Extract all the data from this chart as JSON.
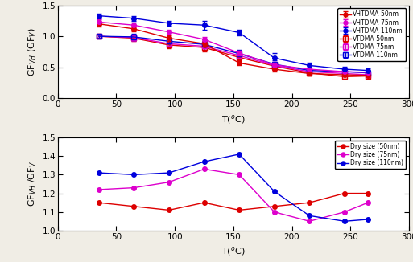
{
  "upper_x": [
    35,
    65,
    95,
    125,
    155,
    185,
    215,
    245,
    265
  ],
  "vhtdma_50nm": [
    1.2,
    1.12,
    0.97,
    0.88,
    0.57,
    0.47,
    0.4,
    0.38,
    0.37
  ],
  "vhtdma_75nm": [
    1.23,
    1.18,
    1.07,
    0.95,
    0.73,
    0.54,
    0.47,
    0.43,
    0.42
  ],
  "vhtdma_110nm": [
    1.33,
    1.29,
    1.21,
    1.18,
    1.06,
    0.65,
    0.53,
    0.47,
    0.45
  ],
  "vhtdma_50nm_err": [
    0.04,
    0.04,
    0.04,
    0.04,
    0.04,
    0.04,
    0.03,
    0.03,
    0.03
  ],
  "vhtdma_75nm_err": [
    0.04,
    0.04,
    0.04,
    0.04,
    0.04,
    0.04,
    0.03,
    0.03,
    0.03
  ],
  "vhtdma_110nm_err": [
    0.04,
    0.04,
    0.04,
    0.07,
    0.04,
    0.08,
    0.04,
    0.04,
    0.04
  ],
  "vtdma_50nm": [
    1.0,
    0.97,
    0.86,
    0.82,
    0.66,
    0.52,
    0.41,
    0.35,
    0.36
  ],
  "vtdma_75nm": [
    1.0,
    0.98,
    0.88,
    0.84,
    0.69,
    0.53,
    0.43,
    0.4,
    0.38
  ],
  "vtdma_110nm": [
    1.0,
    0.99,
    0.92,
    0.87,
    0.72,
    0.55,
    0.45,
    0.43,
    0.41
  ],
  "vtdma_50nm_err": [
    0.03,
    0.05,
    0.05,
    0.06,
    0.06,
    0.06,
    0.04,
    0.04,
    0.04
  ],
  "vtdma_75nm_err": [
    0.03,
    0.05,
    0.05,
    0.06,
    0.06,
    0.06,
    0.04,
    0.04,
    0.04
  ],
  "vtdma_110nm_err": [
    0.03,
    0.05,
    0.05,
    0.06,
    0.06,
    0.06,
    0.04,
    0.04,
    0.04
  ],
  "lower_x": [
    35,
    65,
    95,
    125,
    155,
    185,
    215,
    245,
    265
  ],
  "ratio_50nm": [
    1.15,
    1.13,
    1.11,
    1.15,
    1.11,
    1.13,
    1.15,
    1.2,
    1.2
  ],
  "ratio_75nm": [
    1.22,
    1.23,
    1.26,
    1.33,
    1.3,
    1.1,
    1.05,
    1.1,
    1.15
  ],
  "ratio_110nm": [
    1.31,
    1.3,
    1.31,
    1.37,
    1.41,
    1.21,
    1.08,
    1.05,
    1.06
  ],
  "color_50nm": "#dd0000",
  "color_75nm": "#dd00cc",
  "color_110nm": "#0000dd",
  "upper_ylabel": "GF$_{VH}$ (GF$_V$)",
  "lower_ylabel": "GF$_{VH}$ /GF$_V$",
  "xlabel": "T($^o$C)",
  "upper_ylim": [
    0,
    1.5
  ],
  "lower_ylim": [
    1.0,
    1.5
  ],
  "xlim": [
    0,
    300
  ],
  "upper_yticks": [
    0,
    0.5,
    1.0,
    1.5
  ],
  "lower_yticks": [
    1.0,
    1.1,
    1.2,
    1.3,
    1.4,
    1.5
  ],
  "xticks": [
    0,
    50,
    100,
    150,
    200,
    250,
    300
  ],
  "bg_color": "#f5f5f0",
  "facecolor": "#ffffff"
}
